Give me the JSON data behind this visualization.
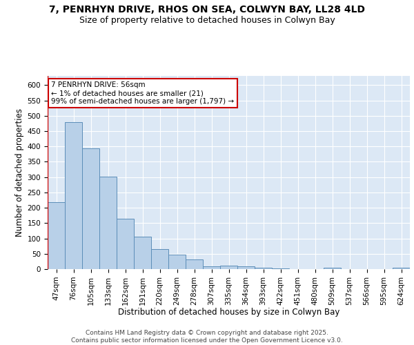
{
  "title_line1": "7, PENRHYN DRIVE, RHOS ON SEA, COLWYN BAY, LL28 4LD",
  "title_line2": "Size of property relative to detached houses in Colwyn Bay",
  "xlabel": "Distribution of detached houses by size in Colwyn Bay",
  "ylabel": "Number of detached properties",
  "bar_labels": [
    "47sqm",
    "76sqm",
    "105sqm",
    "133sqm",
    "162sqm",
    "191sqm",
    "220sqm",
    "249sqm",
    "278sqm",
    "307sqm",
    "335sqm",
    "364sqm",
    "393sqm",
    "422sqm",
    "451sqm",
    "480sqm",
    "509sqm",
    "537sqm",
    "566sqm",
    "595sqm",
    "624sqm"
  ],
  "bar_values": [
    218,
    480,
    393,
    302,
    165,
    106,
    65,
    47,
    31,
    10,
    11,
    9,
    5,
    2,
    1,
    1,
    4,
    1,
    1,
    1,
    5
  ],
  "bar_color": "#b8d0e8",
  "bar_edge_color": "#5b8db8",
  "background_color": "#dce8f5",
  "grid_color": "#ffffff",
  "annotation_text": "7 PENRHYN DRIVE: 56sqm\n← 1% of detached houses are smaller (21)\n99% of semi-detached houses are larger (1,797) →",
  "annotation_box_facecolor": "#ffffff",
  "annotation_box_edgecolor": "#cc0000",
  "red_line_index": -0.5,
  "ylim": [
    0,
    630
  ],
  "yticks": [
    0,
    50,
    100,
    150,
    200,
    250,
    300,
    350,
    400,
    450,
    500,
    550,
    600
  ],
  "footer_text": "Contains HM Land Registry data © Crown copyright and database right 2025.\nContains public sector information licensed under the Open Government Licence v3.0.",
  "title_fontsize": 10,
  "subtitle_fontsize": 9,
  "axis_label_fontsize": 8.5,
  "tick_fontsize": 7.5,
  "annotation_fontsize": 7.5,
  "footer_fontsize": 6.5
}
